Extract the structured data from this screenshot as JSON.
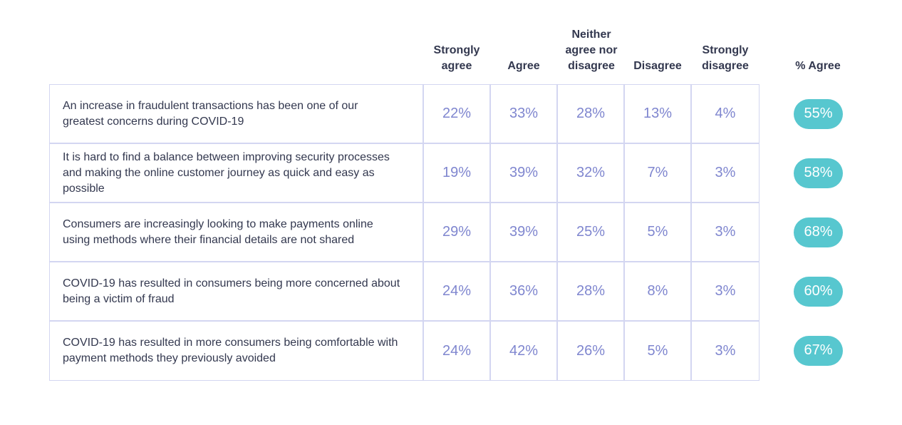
{
  "chart_data": {
    "type": "table",
    "columns": [
      "Strongly agree",
      "Agree",
      "Neither agree nor disagree",
      "Disagree",
      "Strongly disagree",
      "% Agree"
    ],
    "rows": [
      {
        "statement": "An increase in fraudulent transactions has been one of our greatest concerns during COVID-19",
        "values": [
          "22%",
          "33%",
          "28%",
          "13%",
          "4%"
        ],
        "agree": "55%"
      },
      {
        "statement": "It is hard to find a balance between improving security processes and making the online customer journey as quick and easy as possible",
        "values": [
          "19%",
          "39%",
          "32%",
          "7%",
          "3%"
        ],
        "agree": "58%"
      },
      {
        "statement": "Consumers are increasingly looking to make payments online using methods where their financial details are not shared",
        "values": [
          "29%",
          "39%",
          "25%",
          "5%",
          "3%"
        ],
        "agree": "68%"
      },
      {
        "statement": "COVID-19 has resulted in consumers being more concerned about being a victim of fraud",
        "values": [
          "24%",
          "36%",
          "28%",
          "8%",
          "3%"
        ],
        "agree": "60%"
      },
      {
        "statement": "COVID-19 has resulted in more consumers being comfortable with payment methods they previously avoided",
        "values": [
          "24%",
          "42%",
          "26%",
          "5%",
          "3%"
        ],
        "agree": "67%"
      }
    ]
  },
  "colors": {
    "text": "#33384f",
    "value": "#7f86cf",
    "grid": "#d3d6f1",
    "pill": "#57c7cf"
  }
}
